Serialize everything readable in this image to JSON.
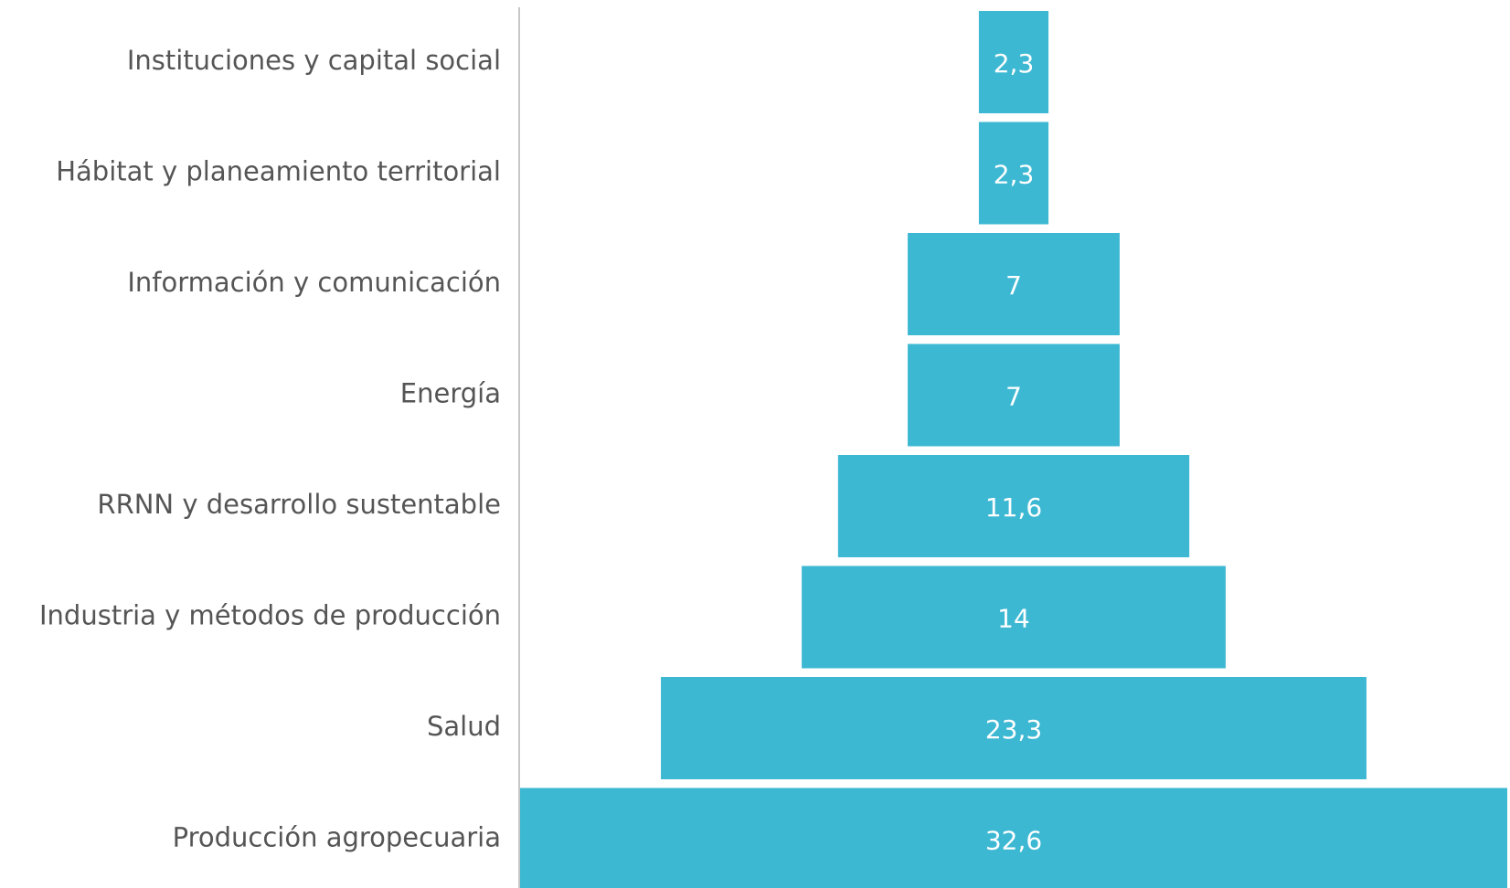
{
  "chart_data": {
    "type": "funnel",
    "categories": [
      "Instituciones y capital social",
      "Hábitat y planeamiento territorial",
      "Información y comunicación",
      "Energía",
      "RRNN y desarrollo sustentable",
      "Industria y métodos de producción",
      "Salud",
      "Producción agropecuaria"
    ],
    "values": [
      2.3,
      2.3,
      7,
      7,
      11.6,
      14,
      23.3,
      32.6
    ],
    "value_labels": [
      "2,3",
      "2,3",
      "7",
      "7",
      "11,6",
      "14",
      "23,3",
      "32,6"
    ],
    "color": "#3db8d3"
  }
}
